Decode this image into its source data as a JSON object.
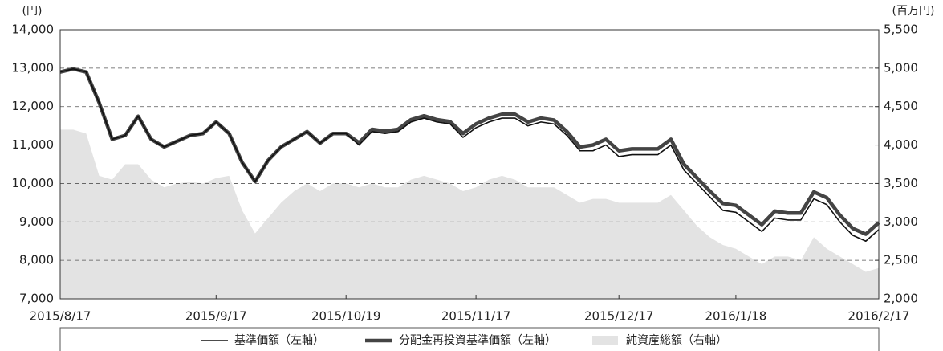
{
  "chart_data": {
    "type": "line",
    "y_unit_label": "(円)",
    "y2_unit_label": "(百万円)",
    "categories": [
      "2015/8/17",
      null,
      null,
      null,
      null,
      null,
      null,
      null,
      null,
      null,
      null,
      null,
      "2015/9/17",
      null,
      null,
      null,
      null,
      null,
      null,
      null,
      null,
      null,
      "2015/10/19",
      null,
      null,
      null,
      null,
      null,
      null,
      null,
      null,
      null,
      "2015/11/17",
      null,
      null,
      null,
      null,
      null,
      null,
      null,
      null,
      null,
      null,
      "2015/12/17",
      null,
      null,
      null,
      null,
      null,
      null,
      null,
      null,
      "2016/1/18",
      null,
      null,
      null,
      null,
      null,
      null,
      null,
      null,
      null,
      null,
      "2016/2/17"
    ],
    "series": [
      {
        "name": "純資産総額（右軸）",
        "color": "#e3e3e3",
        "style": "area",
        "axis": "y2",
        "values": [
          4200,
          4200,
          4150,
          3600,
          3550,
          3750,
          3750,
          3550,
          3450,
          3500,
          3520,
          3500,
          3570,
          3600,
          3150,
          2850,
          3050,
          3250,
          3400,
          3500,
          3400,
          3500,
          3500,
          3450,
          3500,
          3450,
          3450,
          3550,
          3600,
          3550,
          3500,
          3400,
          3450,
          3550,
          3600,
          3550,
          3450,
          3450,
          3450,
          3350,
          3250,
          3300,
          3300,
          3250,
          3250,
          3250,
          3250,
          3350,
          3150,
          2950,
          2800,
          2700,
          2650,
          2550,
          2450,
          2550,
          2550,
          2500,
          2800,
          2650,
          2550,
          2450,
          2350,
          2400
        ]
      },
      {
        "name": "分配金再投資基準価額（左軸）",
        "color": "#444444",
        "style": "thick",
        "values": [
          12900,
          12980,
          12900,
          12100,
          11150,
          11250,
          11750,
          11150,
          10950,
          11100,
          11250,
          11300,
          11600,
          11300,
          10550,
          10050,
          10600,
          10950,
          11150,
          11350,
          11050,
          11300,
          11300,
          11060,
          11410,
          11360,
          11410,
          11660,
          11760,
          11660,
          11610,
          11300,
          11550,
          11700,
          11800,
          11800,
          11600,
          11700,
          11650,
          11350,
          10950,
          11000,
          11150,
          10850,
          10900,
          10900,
          10900,
          11150,
          10500,
          10150,
          9800,
          9480,
          9430,
          9180,
          8930,
          9280,
          9230,
          9230,
          9780,
          9630,
          9180,
          8830,
          8680,
          8980
        ]
      },
      {
        "name": "基準価額（左軸）",
        "color": "#111111",
        "style": "thin",
        "values": [
          12900,
          12980,
          12900,
          12100,
          11150,
          11250,
          11750,
          11150,
          10950,
          11100,
          11250,
          11300,
          11600,
          11300,
          10550,
          10050,
          10600,
          10950,
          11150,
          11350,
          11050,
          11300,
          11300,
          11000,
          11350,
          11300,
          11350,
          11600,
          11700,
          11600,
          11550,
          11200,
          11450,
          11600,
          11700,
          11700,
          11500,
          11600,
          11550,
          11250,
          10850,
          10850,
          11000,
          10700,
          10750,
          10750,
          10750,
          11000,
          10350,
          10000,
          9650,
          9300,
          9250,
          9000,
          8750,
          9100,
          9050,
          9050,
          9600,
          9450,
          9000,
          8650,
          8500,
          8800
        ]
      }
    ],
    "legend_order": [
      2,
      1,
      0
    ],
    "ylim": [
      7000,
      14000
    ],
    "yticks": [
      {
        "value": 7000,
        "label": "7,000"
      },
      {
        "value": 8000,
        "label": "8,000"
      },
      {
        "value": 9000,
        "label": "9,000"
      },
      {
        "value": 10000,
        "label": "10,000"
      },
      {
        "value": 11000,
        "label": "11,000"
      },
      {
        "value": 12000,
        "label": "12,000"
      },
      {
        "value": 13000,
        "label": "13,000"
      },
      {
        "value": 14000,
        "label": "14,000"
      }
    ],
    "y2lim": [
      2000,
      5500
    ],
    "y2ticks": [
      {
        "value": 2000,
        "label": "2,000"
      },
      {
        "value": 2500,
        "label": "2,500"
      },
      {
        "value": 3000,
        "label": "3,000"
      },
      {
        "value": 3500,
        "label": "3,500"
      },
      {
        "value": 4000,
        "label": "4,000"
      },
      {
        "value": 4500,
        "label": "4,500"
      },
      {
        "value": 5000,
        "label": "5,000"
      },
      {
        "value": 5500,
        "label": "5,500"
      }
    ],
    "grid": true
  }
}
